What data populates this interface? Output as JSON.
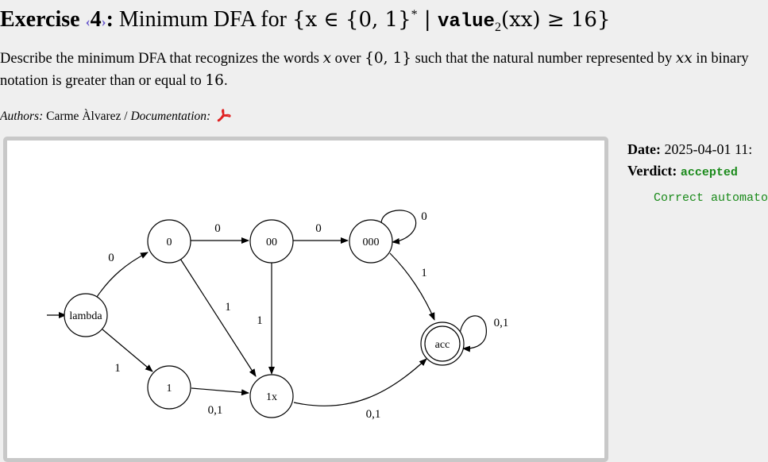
{
  "exercise": {
    "label": "Exercise",
    "arrow_left": "‹",
    "number": "4",
    "arrow_right": "›",
    "colon": ":",
    "title_text": "Minimum DFA for",
    "title_math_open": "{x ∈ {0, 1}",
    "title_star": "*",
    "title_math_mid": " | ",
    "title_value": "value",
    "title_sub": "2",
    "title_math_close": "(xx) ≥ 16}"
  },
  "description": {
    "part1": "Describe the minimum DFA that recognizes the words ",
    "var_x": "x",
    "part2": " over ",
    "alphabet": "{0, 1}",
    "part3": " such that the natural number represented by ",
    "var_xx": "xx",
    "part4": " in binary notation is greater than or equal to ",
    "number": "16",
    "part5": "."
  },
  "authors": {
    "label": "Authors:",
    "name": "Carme Àlvarez",
    "sep": " / ",
    "doc_label": "Documentation:",
    "doc_icon": "pdf-icon"
  },
  "dfa": {
    "states": [
      {
        "id": "lambda",
        "label": "lambda",
        "initial": true
      },
      {
        "id": "q0",
        "label": "0"
      },
      {
        "id": "q00",
        "label": "00"
      },
      {
        "id": "q000",
        "label": "000"
      },
      {
        "id": "q1",
        "label": "1"
      },
      {
        "id": "q1x",
        "label": "1x"
      },
      {
        "id": "acc",
        "label": "acc",
        "accepting": true
      }
    ],
    "transitions": [
      {
        "from": "lambda",
        "to": "q0",
        "label": "0"
      },
      {
        "from": "lambda",
        "to": "q1",
        "label": "1"
      },
      {
        "from": "q0",
        "to": "q00",
        "label": "0"
      },
      {
        "from": "q0",
        "to": "q1x",
        "label": "1"
      },
      {
        "from": "q00",
        "to": "q000",
        "label": "0"
      },
      {
        "from": "q00",
        "to": "q1x",
        "label": "1"
      },
      {
        "from": "q000",
        "to": "q000",
        "label": "0"
      },
      {
        "from": "q000",
        "to": "acc",
        "label": "1"
      },
      {
        "from": "q1",
        "to": "q1x",
        "label": "0,1"
      },
      {
        "from": "q1x",
        "to": "acc",
        "label": "0,1"
      },
      {
        "from": "acc",
        "to": "acc",
        "label": "0,1"
      }
    ]
  },
  "result": {
    "date_label": "Date:",
    "date_value": "2025-04-01 11:",
    "verdict_label": "Verdict:",
    "verdict_value": "accepted",
    "message": "Correct automaton"
  },
  "colors": {
    "accent_arrow": "#6a5acd",
    "verdict": "#1a8a1a",
    "pdf": "#e02020",
    "panel_border": "#c8c8c8"
  }
}
